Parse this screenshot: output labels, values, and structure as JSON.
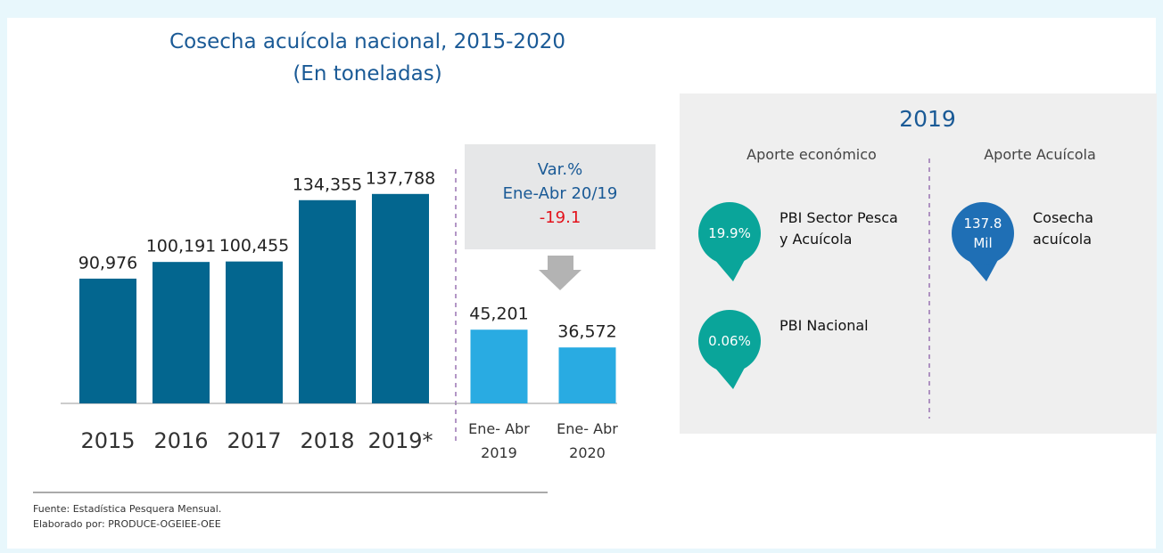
{
  "chart_data": [
    {
      "type": "bar",
      "title": "Cosecha acuícola nacional, 2015-2020",
      "subtitle": "(En toneladas)",
      "categories": [
        "2015",
        "2016",
        "2017",
        "2018",
        "2019*"
      ],
      "values": [
        90976,
        100191,
        100455,
        134355,
        137788
      ],
      "value_labels": [
        "90,976",
        "100,191",
        "100,455",
        "134,355",
        "137,788"
      ],
      "color": "#03668f",
      "ylim": [
        22000,
        150000
      ]
    },
    {
      "type": "bar",
      "categories": [
        "Ene- Abr 2019",
        "Ene- Abr 2020"
      ],
      "values": [
        45201,
        36572
      ],
      "value_labels": [
        "45,201",
        "36,572"
      ],
      "color": "#29abe2",
      "ylim": [
        9400,
        60000
      ]
    }
  ],
  "variation": {
    "lines": [
      "Var.%",
      "Ene-Abr 20/19"
    ],
    "value": "-19.1"
  },
  "panel": {
    "title": "2019",
    "columns": [
      {
        "heading": "Aporte económico",
        "items": [
          {
            "value": "19.9%",
            "label": "PBI Sector Pesca y Acuícola"
          },
          {
            "value": "0.06%",
            "label": "PBI Nacional"
          }
        ]
      },
      {
        "heading": "Aporte Acuícola",
        "items": [
          {
            "value": "137.8 Mil",
            "label": "Cosecha acuícola"
          }
        ]
      }
    ]
  },
  "source": [
    "Fuente: Estadística Pesquera Mensual.",
    "Elaborado por: PRODUCE-OGEIEE-OEE"
  ]
}
